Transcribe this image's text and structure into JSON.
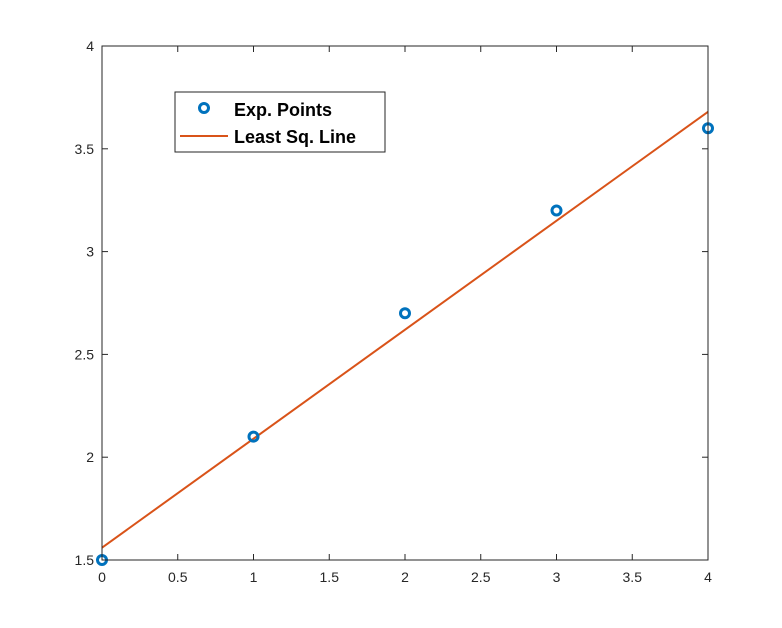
{
  "chart_data": {
    "type": "scatter",
    "title": "",
    "xlabel": "",
    "ylabel": "",
    "xlim": [
      0,
      4
    ],
    "ylim": [
      1.5,
      4
    ],
    "xticks": [
      0,
      0.5,
      1,
      1.5,
      2,
      2.5,
      3,
      3.5,
      4
    ],
    "yticks": [
      1.5,
      2,
      2.5,
      3,
      3.5,
      4
    ],
    "xtick_labels": [
      "0",
      "0.5",
      "1",
      "1.5",
      "2",
      "2.5",
      "3",
      "3.5",
      "4"
    ],
    "ytick_labels": [
      "1.5",
      "2",
      "2.5",
      "3",
      "3.5",
      "4"
    ],
    "grid": false,
    "legend_position": "top-left",
    "series": [
      {
        "name": "Exp. Points",
        "kind": "scatter",
        "marker": "circle",
        "color": "#0072BD",
        "x": [
          0,
          1,
          2,
          3,
          4
        ],
        "y": [
          1.5,
          2.1,
          2.7,
          3.2,
          3.6
        ]
      },
      {
        "name": "Least Sq. Line",
        "kind": "line",
        "color": "#D95319",
        "x": [
          0,
          4
        ],
        "y": [
          1.56,
          3.68
        ]
      }
    ]
  }
}
